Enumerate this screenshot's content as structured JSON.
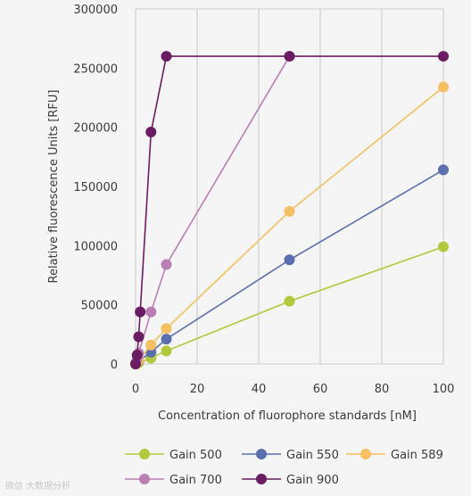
{
  "colors": {
    "background": "#f5f5f5",
    "grid": "#c9c9c9",
    "text": "#3a3a3a"
  },
  "watermark": "微信 大数据分析",
  "chart_data": {
    "type": "line",
    "xlabel": "Concentration of fluorophore standards [nM]",
    "ylabel": "Relative fluorescence Units [RFU]",
    "xlim": [
      0,
      100
    ],
    "ylim": [
      0,
      300000
    ],
    "xticks": [
      0,
      20,
      40,
      60,
      80,
      100
    ],
    "xtick_labels": [
      "0",
      "20",
      "40",
      "60",
      "80",
      "100"
    ],
    "yticks": [
      0,
      50000,
      100000,
      150000,
      200000,
      250000,
      300000
    ],
    "ytick_labels": [
      "0",
      "50000",
      "100000",
      "150000",
      "200000",
      "250000",
      "300000"
    ],
    "grid": "vertical",
    "legend_position": "bottom",
    "series": [
      {
        "name": "Gain 500",
        "color": "#b3c83c",
        "points": [
          [
            0,
            0
          ],
          [
            0.5,
            500
          ],
          [
            1,
            1000
          ],
          [
            5,
            5000
          ],
          [
            10,
            11000
          ],
          [
            50,
            53000
          ],
          [
            100,
            99000
          ]
        ]
      },
      {
        "name": "Gain 550",
        "color": "#5a6fad",
        "points": [
          [
            0,
            0
          ],
          [
            0.5,
            1500
          ],
          [
            1,
            2500
          ],
          [
            5,
            10000
          ],
          [
            10,
            21000
          ],
          [
            50,
            88000
          ],
          [
            100,
            164000
          ]
        ]
      },
      {
        "name": "Gain 589",
        "color": "#f6bf62",
        "points": [
          [
            0,
            0
          ],
          [
            0.5,
            1500
          ],
          [
            1,
            3000
          ],
          [
            5,
            16000
          ],
          [
            10,
            30000
          ],
          [
            50,
            129000
          ],
          [
            100,
            234000
          ]
        ]
      },
      {
        "name": "Gain 700",
        "color": "#b97fb5",
        "points": [
          [
            0,
            500
          ],
          [
            0.5,
            4000
          ],
          [
            1,
            9000
          ],
          [
            5,
            44000
          ],
          [
            10,
            84000
          ],
          [
            50,
            260000
          ]
        ]
      },
      {
        "name": "Gain 900",
        "color": "#6a1d62",
        "points": [
          [
            0,
            0
          ],
          [
            0.5,
            7500
          ],
          [
            1,
            23000
          ],
          [
            1.5,
            44000
          ],
          [
            5,
            196000
          ],
          [
            10,
            260000
          ],
          [
            50,
            260000
          ],
          [
            100,
            260000
          ]
        ]
      }
    ]
  }
}
